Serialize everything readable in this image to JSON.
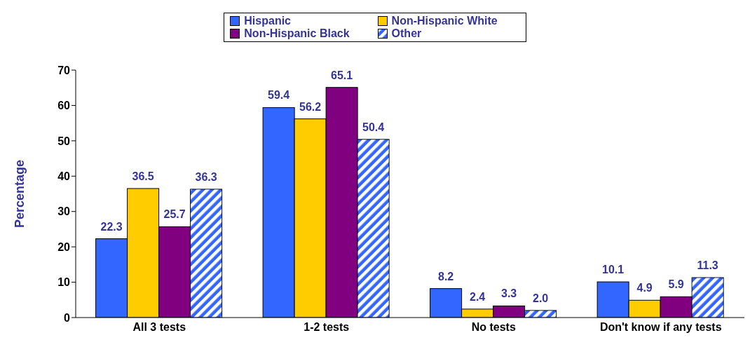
{
  "chart_data": {
    "type": "bar",
    "ylabel": "Percentage",
    "categories": [
      "All 3 tests",
      "1-2 tests",
      "No tests",
      "Don't know if any tests"
    ],
    "series": [
      {
        "name": "Hispanic",
        "color": "#3366ff",
        "values": [
          22.3,
          59.4,
          8.2,
          10.1
        ],
        "value_labels": [
          "22.3",
          "59.4",
          "8.2",
          "10.1"
        ]
      },
      {
        "name": "Non-Hispanic Black",
        "color": "#800080",
        "values": [
          25.7,
          65.1,
          3.3,
          5.9
        ],
        "value_labels": [
          "25.7",
          "65.1",
          "3.3",
          "5.9"
        ]
      },
      {
        "name": "Non-Hispanic White",
        "color": "#ffcc00",
        "values": [
          36.5,
          56.2,
          2.4,
          4.9
        ],
        "value_labels": [
          "36.5",
          "56.2",
          "2.4",
          "4.9"
        ]
      },
      {
        "name": "Other",
        "color": "#3366ff",
        "values": [
          36.3,
          50.4,
          2.0,
          11.3
        ],
        "value_labels": [
          "36.3",
          "50.4",
          "2.0",
          "11.3"
        ]
      }
    ],
    "ylim": [
      0,
      70
    ],
    "yticks": [
      0,
      10,
      20,
      30,
      40,
      50,
      60,
      70
    ],
    "grid": false,
    "legend": "top"
  }
}
